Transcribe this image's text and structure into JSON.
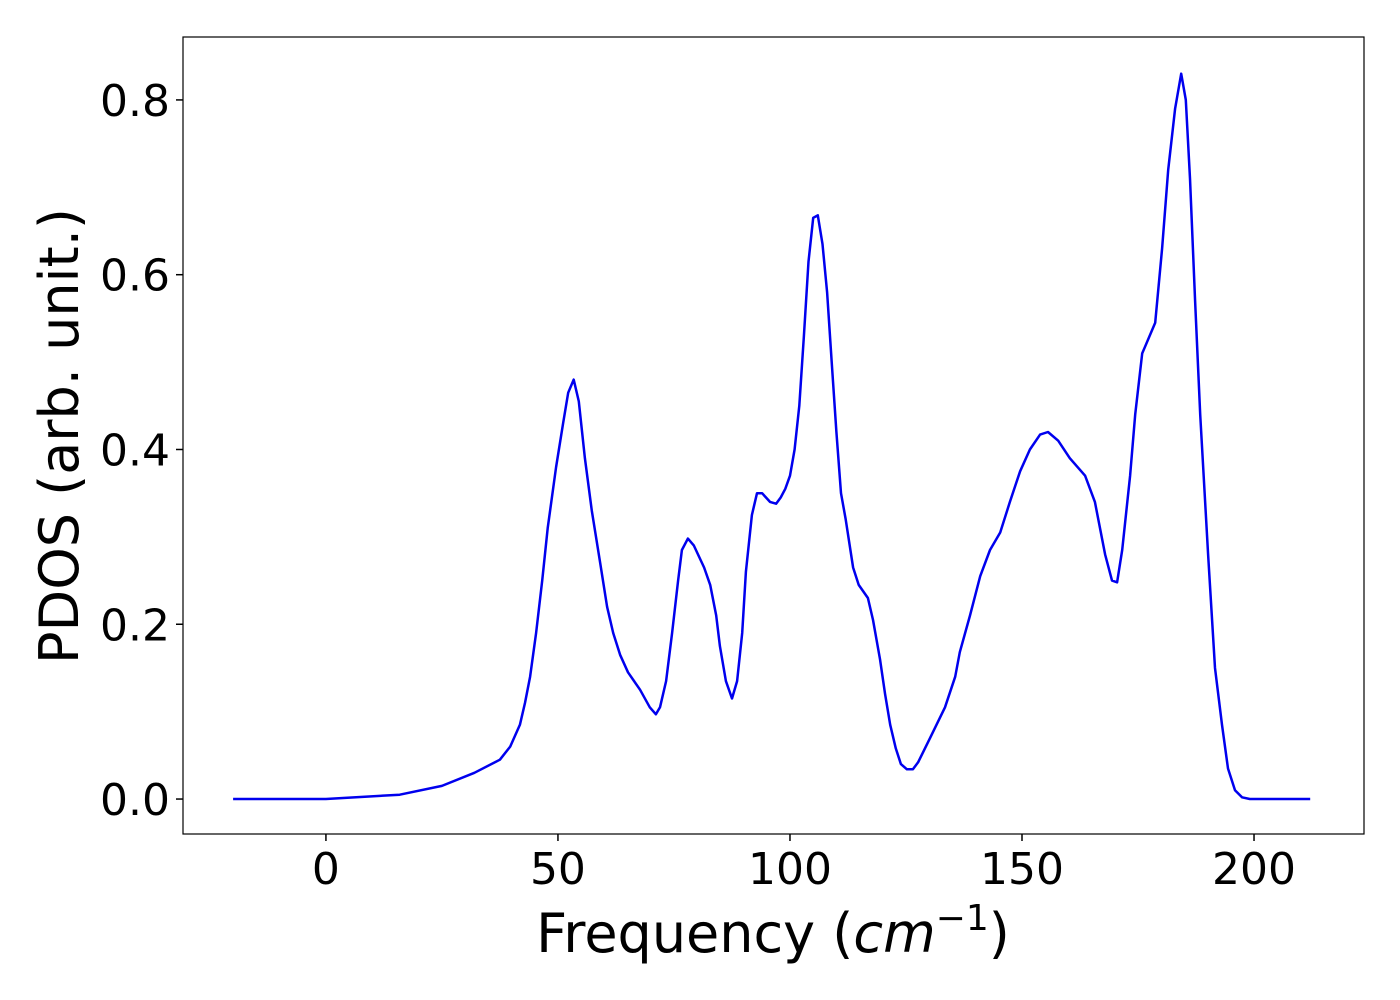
{
  "chart_data": {
    "type": "line",
    "y_label": "PDOS (arb. unit.)",
    "x_label": {
      "prefix": "Frequency (",
      "math": "cm",
      "exponent": "−1",
      "suffix": ")"
    },
    "x": [
      -20,
      0,
      15.9,
      25,
      32,
      37.5,
      39.7,
      41.8,
      42.9,
      44,
      45.3,
      46.6,
      47.8,
      49.6,
      51.1,
      52.2,
      53.4,
      54.5,
      55.8,
      57.3,
      59.1,
      60.6,
      61.9,
      63.4,
      65.1,
      67.7,
      69.8,
      71.1,
      72,
      73.3,
      74.6,
      75.9,
      76.7,
      78,
      79.3,
      81.5,
      82.8,
      84.1,
      84.9,
      86.2,
      87.5,
      88.6,
      89.7,
      90.5,
      91.8,
      92.9,
      94,
      95.7,
      97,
      98,
      99,
      100,
      101,
      102,
      103,
      104,
      105,
      106,
      107,
      108,
      109,
      110,
      111,
      112,
      113.6,
      114.8,
      116.8,
      117.9,
      119.4,
      120.5,
      121.6,
      122.8,
      123.9,
      125.2,
      126.5,
      127.6,
      130.2,
      133.4,
      135.6,
      136.6,
      138.8,
      141,
      143.1,
      145.3,
      147.4,
      149.6,
      151.7,
      153.9,
      155.6,
      157.8,
      160.3,
      163.6,
      165.7,
      167.9,
      169.4,
      170.5,
      171.6,
      173.3,
      174.4,
      175.9,
      178.7,
      180.2,
      181.5,
      183,
      184.3,
      185.3,
      186.2,
      187.3,
      188.4,
      190.1,
      191.6,
      193.1,
      194.4,
      195.9,
      197.4,
      199.1,
      212.1
    ],
    "series": [
      {
        "name": "PDOS",
        "color": "#0000ee",
        "values": [
          0,
          0,
          0.005,
          0.015,
          0.03,
          0.045,
          0.06,
          0.085,
          0.11,
          0.14,
          0.19,
          0.25,
          0.31,
          0.38,
          0.43,
          0.465,
          0.48,
          0.455,
          0.39,
          0.33,
          0.27,
          0.22,
          0.19,
          0.165,
          0.145,
          0.125,
          0.105,
          0.097,
          0.105,
          0.135,
          0.19,
          0.25,
          0.285,
          0.298,
          0.29,
          0.265,
          0.245,
          0.21,
          0.175,
          0.135,
          0.115,
          0.135,
          0.19,
          0.26,
          0.325,
          0.35,
          0.35,
          0.34,
          0.338,
          0.345,
          0.355,
          0.37,
          0.4,
          0.45,
          0.53,
          0.615,
          0.665,
          0.668,
          0.635,
          0.58,
          0.5,
          0.42,
          0.35,
          0.32,
          0.265,
          0.245,
          0.23,
          0.205,
          0.16,
          0.12,
          0.085,
          0.058,
          0.04,
          0.034,
          0.034,
          0.042,
          0.07,
          0.105,
          0.14,
          0.168,
          0.21,
          0.255,
          0.285,
          0.305,
          0.34,
          0.375,
          0.4,
          0.417,
          0.42,
          0.41,
          0.39,
          0.37,
          0.34,
          0.28,
          0.25,
          0.248,
          0.285,
          0.37,
          0.44,
          0.51,
          0.545,
          0.63,
          0.72,
          0.79,
          0.83,
          0.8,
          0.71,
          0.57,
          0.44,
          0.28,
          0.15,
          0.085,
          0.035,
          0.01,
          0.002,
          0,
          0
        ]
      }
    ],
    "xlim": [
      -30.8,
      223.7
    ],
    "ylim": [
      -0.04,
      0.872
    ],
    "xticks": [
      0,
      50,
      100,
      150,
      200
    ],
    "yticks": [
      {
        "value": 0,
        "label": "0.0"
      },
      0.2,
      0.4,
      0.6,
      0.8
    ]
  }
}
